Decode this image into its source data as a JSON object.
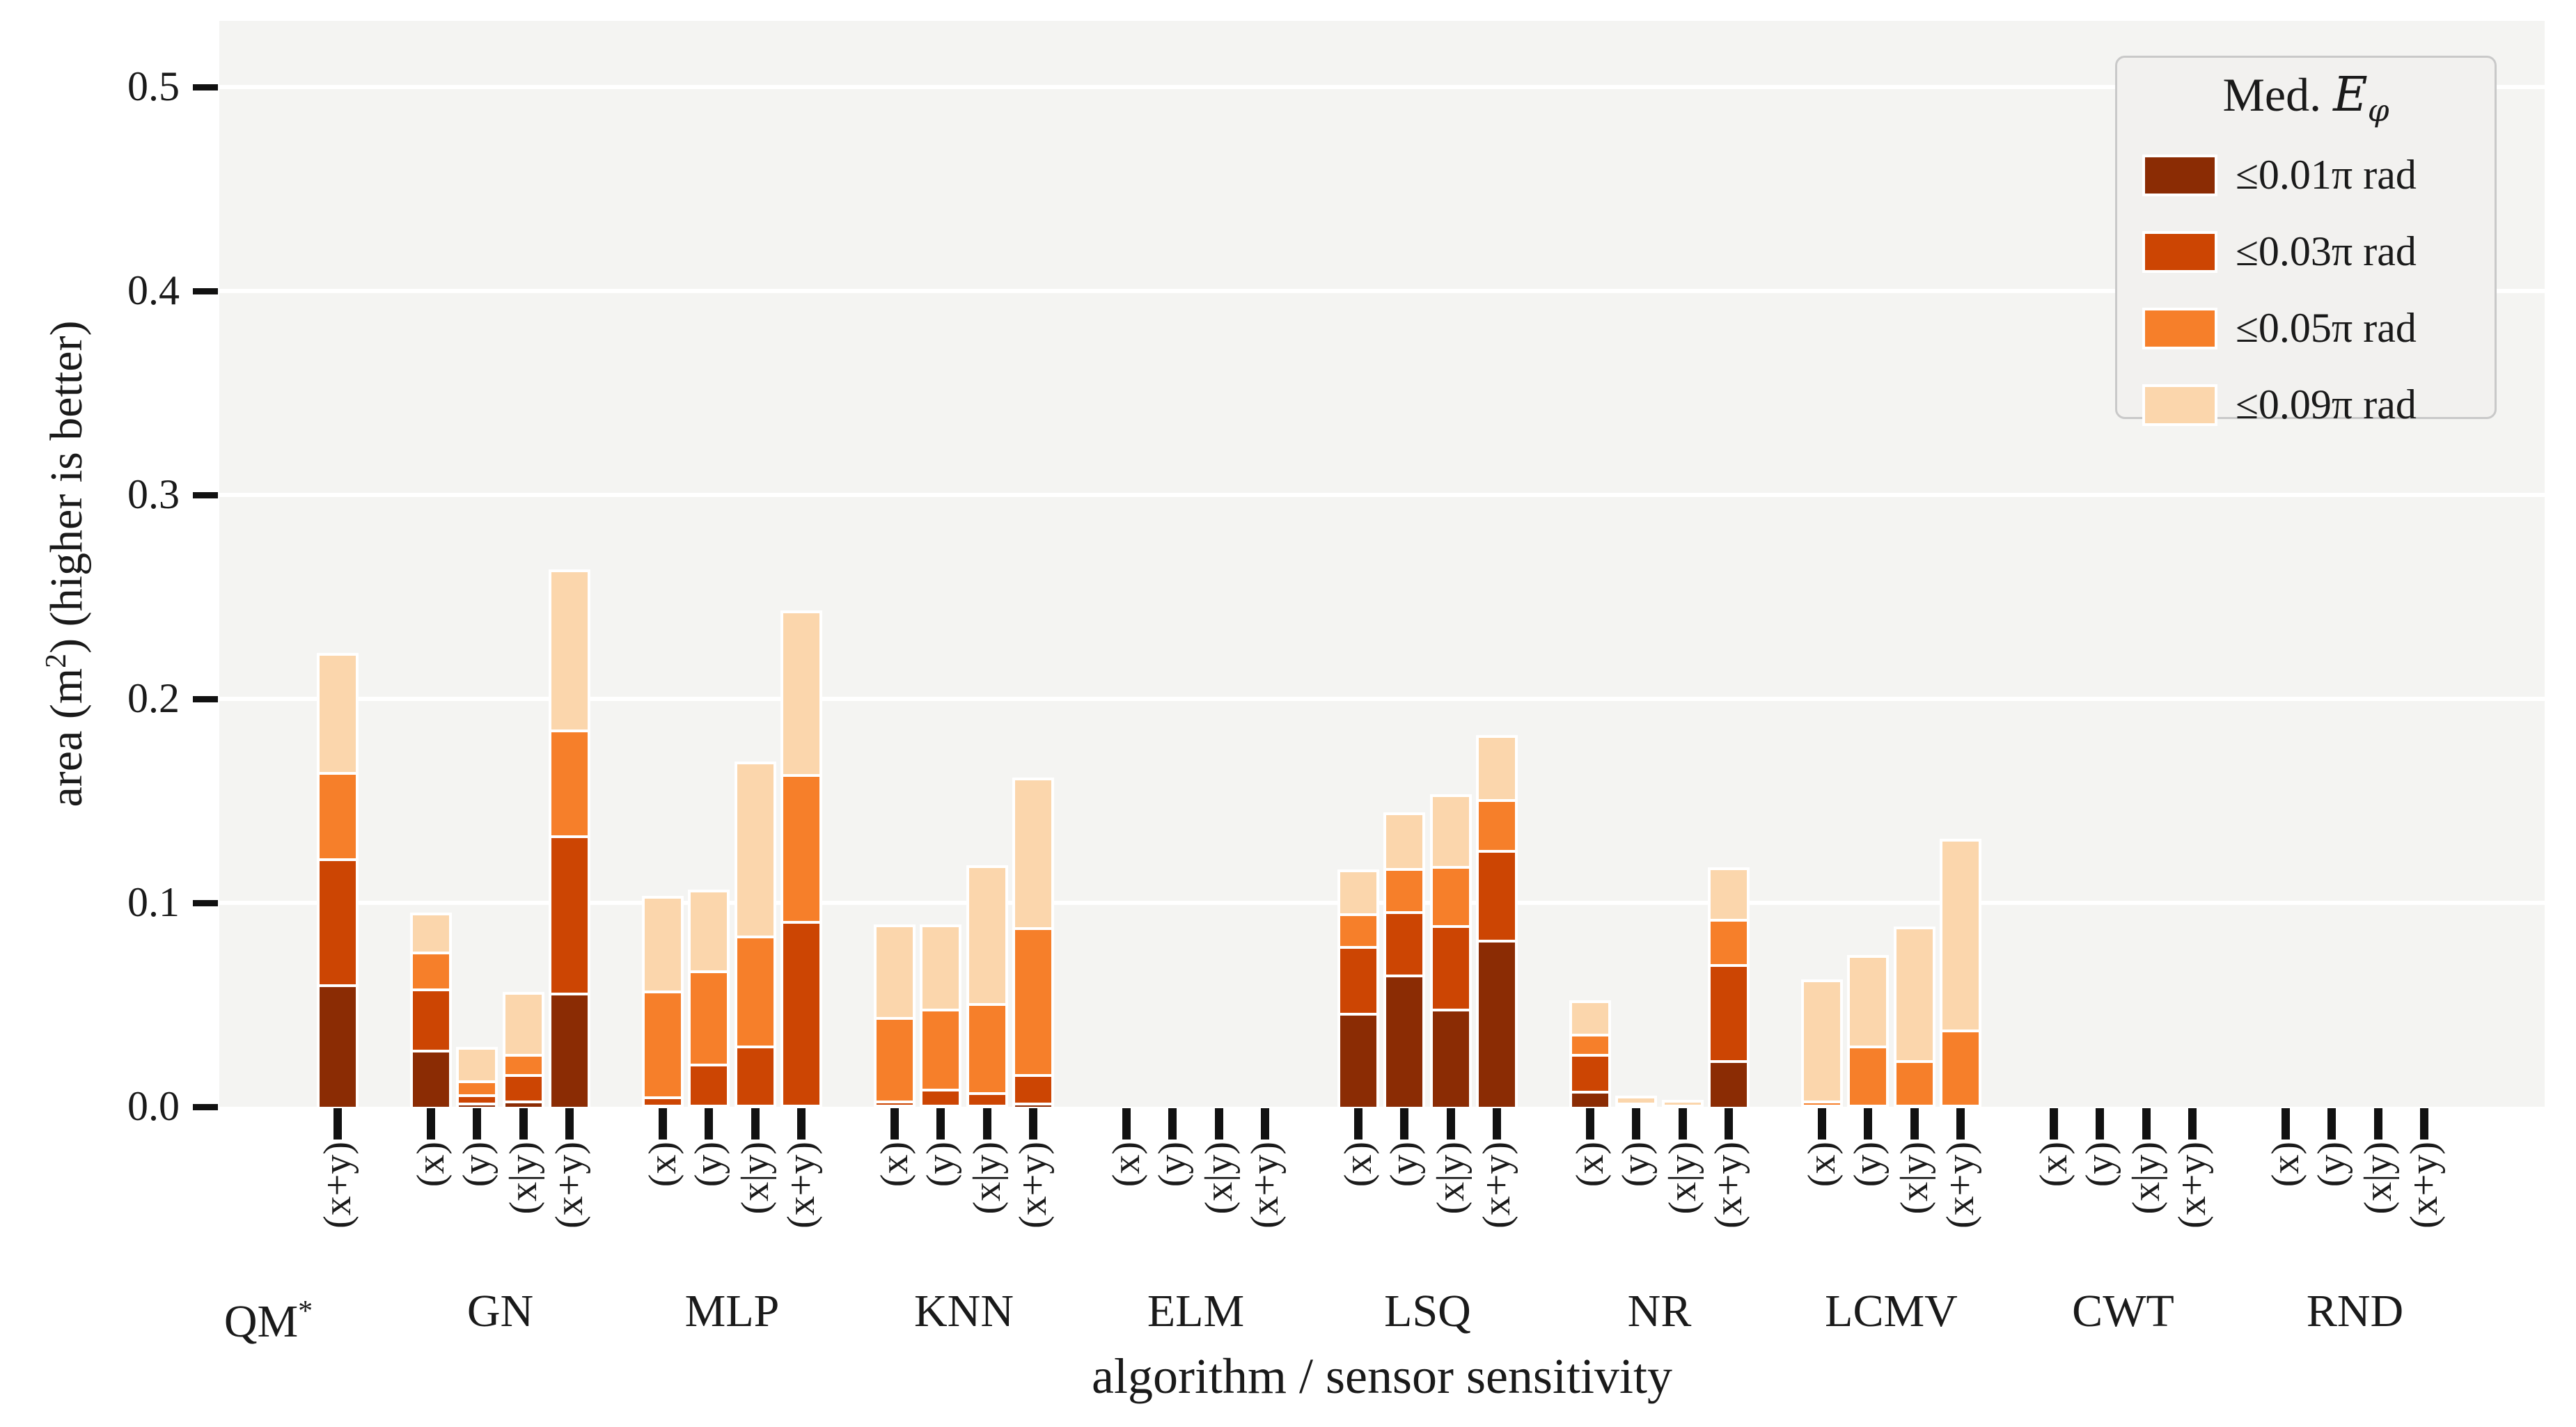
{
  "chart_data": {
    "type": "bar",
    "stacked": true,
    "note": "values are cumulative area thresholds; bars per group drawn at sensitivity slots",
    "title": "",
    "xlabel": "algorithm / sensor sensitivity",
    "ylabel": "area (m2) (higher is better)",
    "ylabel_parts": {
      "prefix": "area (m",
      "sup": "2",
      "suffix": ") (higher is better)"
    },
    "ylim": [
      0,
      0.53
    ],
    "grid": "horizontal-white",
    "background_color": "#f4f4f2",
    "ytick_values": [
      0.0,
      0.1,
      0.2,
      0.3,
      0.4,
      0.5
    ],
    "ytick_labels": [
      "0.0",
      "0.1",
      "0.2",
      "0.3",
      "0.4",
      "0.5"
    ],
    "slot_labels": [
      "(x)",
      "(y)",
      "(x|y)",
      "(x+y)"
    ],
    "series_colors": [
      "#8b2c04",
      "#cc4503",
      "#f67f2a",
      "#fbd6ac"
    ],
    "legend": {
      "position": "upper right",
      "title_prefix": "Med.",
      "title_var": "E",
      "title_sub": "φ",
      "entries": [
        {
          "label": "≤0.01π rad",
          "color": "#8b2c04"
        },
        {
          "label": "≤0.03π rad",
          "color": "#cc4503"
        },
        {
          "label": "≤0.05π rad",
          "color": "#f67f2a"
        },
        {
          "label": "≤0.09π rad",
          "color": "#fbd6ac"
        }
      ]
    },
    "groups": [
      {
        "name": "QM",
        "sup": "*",
        "slots": [
          "(x+y)"
        ],
        "bars": {
          "(x+y)": [
            0.06,
            0.122,
            0.164,
            0.221
          ]
        }
      },
      {
        "name": "GN",
        "sup": "",
        "slots": [
          "(x)",
          "(y)",
          "(x|y)",
          "(x+y)"
        ],
        "bars": {
          "(x)": [
            0.028,
            0.058,
            0.076,
            0.094
          ],
          "(y)": [
            0.002,
            0.006,
            0.013,
            0.028
          ],
          "(x|y)": [
            0.003,
            0.016,
            0.026,
            0.055
          ],
          "(x+y)": [
            0.056,
            0.133,
            0.185,
            0.262
          ]
        }
      },
      {
        "name": "MLP",
        "sup": "",
        "slots": [
          "(x)",
          "(y)",
          "(x|y)",
          "(x+y)"
        ],
        "bars": {
          "(x)": [
            0.001,
            0.005,
            0.057,
            0.102
          ],
          "(y)": [
            0.001,
            0.021,
            0.067,
            0.105
          ],
          "(x|y)": [
            0.001,
            0.03,
            0.084,
            0.168
          ],
          "(x+y)": [
            0.001,
            0.091,
            0.163,
            0.242
          ]
        }
      },
      {
        "name": "KNN",
        "sup": "",
        "slots": [
          "(x)",
          "(y)",
          "(x|y)",
          "(x+y)"
        ],
        "bars": {
          "(x)": [
            0.001,
            0.003,
            0.044,
            0.088
          ],
          "(y)": [
            0.001,
            0.009,
            0.048,
            0.088
          ],
          "(x|y)": [
            0.001,
            0.007,
            0.051,
            0.117
          ],
          "(x+y)": [
            0.002,
            0.016,
            0.088,
            0.16
          ]
        }
      },
      {
        "name": "ELM",
        "sup": "",
        "slots": [
          "(x)",
          "(y)",
          "(x|y)",
          "(x+y)"
        ],
        "bars": {}
      },
      {
        "name": "LSQ",
        "sup": "",
        "slots": [
          "(x)",
          "(y)",
          "(x|y)",
          "(x+y)"
        ],
        "bars": {
          "(x)": [
            0.046,
            0.079,
            0.095,
            0.115
          ],
          "(y)": [
            0.065,
            0.096,
            0.117,
            0.143
          ],
          "(x|y)": [
            0.048,
            0.089,
            0.118,
            0.152
          ],
          "(x+y)": [
            0.082,
            0.126,
            0.151,
            0.181
          ]
        }
      },
      {
        "name": "NR",
        "sup": "",
        "slots": [
          "(x)",
          "(y)",
          "(x|y)",
          "(x+y)"
        ],
        "bars": {
          "(x)": [
            0.008,
            0.026,
            0.036,
            0.051
          ],
          "(y)": [
            0.0,
            0.001,
            0.002,
            0.004
          ],
          "(x|y)": [
            0.0,
            0.0,
            0.001,
            0.002
          ],
          "(x+y)": [
            0.023,
            0.07,
            0.092,
            0.116
          ]
        }
      },
      {
        "name": "LCMV",
        "sup": "",
        "slots": [
          "(x)",
          "(y)",
          "(x|y)",
          "(x+y)"
        ],
        "bars": {
          "(x)": [
            0.0,
            0.001,
            0.003,
            0.061
          ],
          "(y)": [
            0.0,
            0.001,
            0.03,
            0.073
          ],
          "(x|y)": [
            0.0,
            0.001,
            0.023,
            0.087
          ],
          "(x+y)": [
            0.0,
            0.001,
            0.038,
            0.13
          ]
        }
      },
      {
        "name": "CWT",
        "sup": "",
        "slots": [
          "(x)",
          "(y)",
          "(x|y)",
          "(x+y)"
        ],
        "bars": {}
      },
      {
        "name": "RND",
        "sup": "",
        "slots": [
          "(x)",
          "(y)",
          "(x|y)",
          "(x+y)"
        ],
        "bars": {}
      }
    ]
  }
}
